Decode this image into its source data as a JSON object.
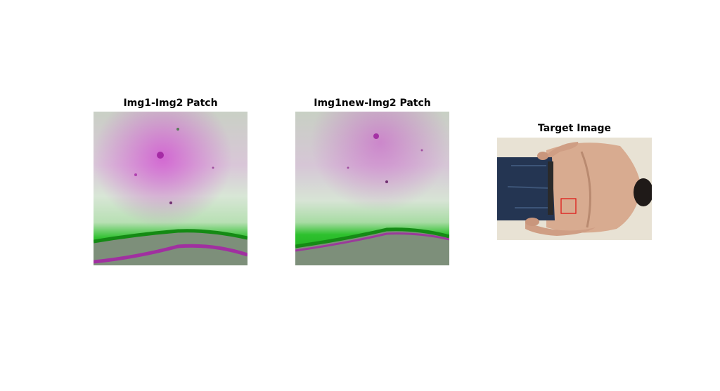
{
  "panels": [
    {
      "title": "Img1-Img2 Patch"
    },
    {
      "title": "Img1new-Img2 Patch"
    },
    {
      "title": "Target Image"
    }
  ]
}
